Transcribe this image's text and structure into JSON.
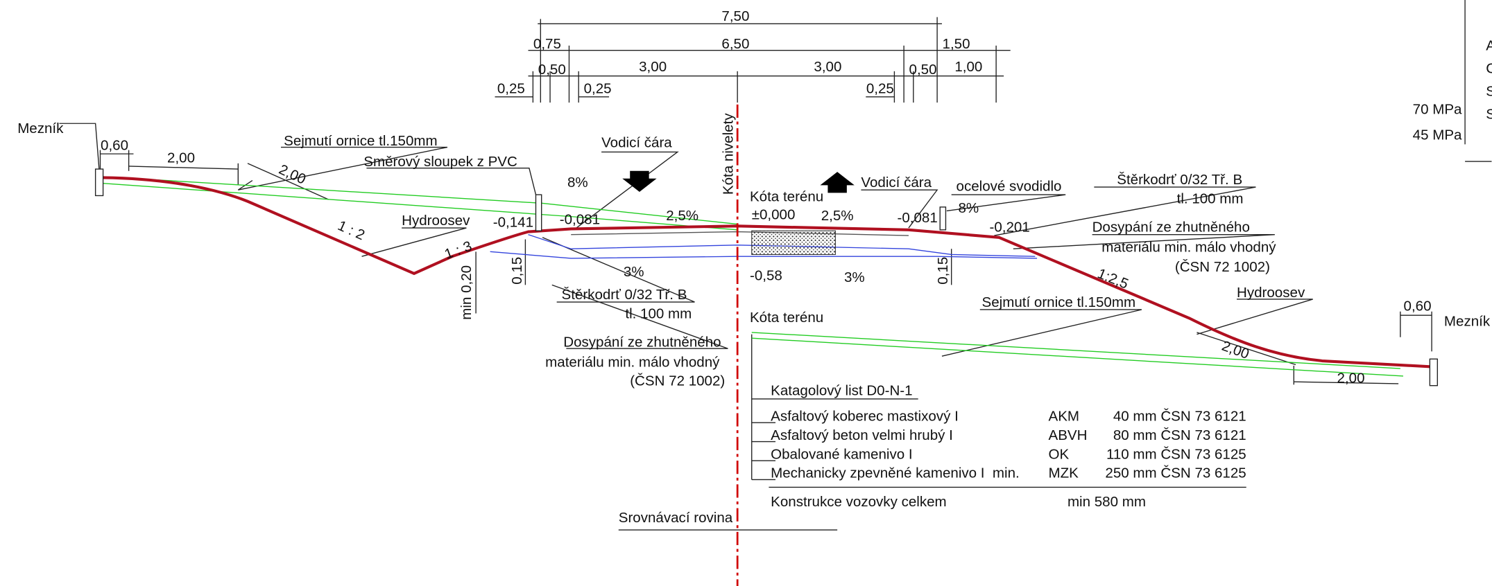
{
  "dimensions": [
    "7,50",
    "0,75",
    "6,50",
    "1,50",
    "0,50",
    "3,00",
    "3,00",
    "0,50",
    "1,00",
    "0,25",
    "0,25",
    "0,25",
    "0,60",
    "2,00",
    "2,00",
    "0,15",
    "0,15",
    "min 0,20",
    "2,00",
    "0,60",
    "2,00"
  ],
  "levels": [
    "±0,000",
    "-0,141",
    "-0,081",
    "-0,081",
    "-0,201",
    "-0,58"
  ],
  "slopes": [
    "8%",
    "2,5%",
    "2,5%",
    "8%",
    "3%",
    "3%",
    "1 : 2",
    "1 : 3",
    "1:2,5"
  ],
  "annotations": [
    "Mezník",
    "Sejmutí ornice tl.150mm",
    "Směrový sloupek z PVC",
    "Vodicí čára",
    "Kóta nivelety",
    "Kóta terénu",
    "Vodicí čára",
    "ocelové svodidlo",
    "Štěrkodrť 0/32 Tř. B",
    "tl. 100 mm",
    "Dosypání ze zhutněného",
    "materiálu min. málo vhodný",
    "(ČSN 72 1002)",
    "Hydroosev",
    "Štěrkodrť 0/32 Tř. B",
    "tl. 100 mm",
    "Hydroosev",
    "Sejmutí ornice tl.150mm",
    "Kóta terénu",
    "Dosypání ze zhutněného",
    "materiálu min. málo vhodný",
    "(ČSN 72 1002)",
    "Mezník",
    "Srovnávací rovina"
  ],
  "pavement": {
    "title": "Katagolový list D0-N-1",
    "layers": [
      {
        "name": "Asfaltový koberec mastixový I",
        "code": "AKM",
        "thickness": "40 mm ČSN 73 6121"
      },
      {
        "name": "Asfaltový beton velmi hrubý I",
        "code": "ABVH",
        "thickness": "80 mm ČSN 73 6121"
      },
      {
        "name": "Obalované kamenivo I",
        "code": "OK",
        "thickness": "110 mm ČSN 73 6125"
      },
      {
        "name": "Mechanicky zpevněné kamenivo I  min.",
        "code": "MZK",
        "thickness": "250 mm ČSN 73 6125"
      }
    ],
    "total_label": "Konstrukce vozovky celkem",
    "total_value": "min 580 mm"
  },
  "side": {
    "moduli": [
      "70 MPa",
      "45 MPa"
    ],
    "letters": [
      "A",
      "C",
      "S",
      "S"
    ]
  }
}
